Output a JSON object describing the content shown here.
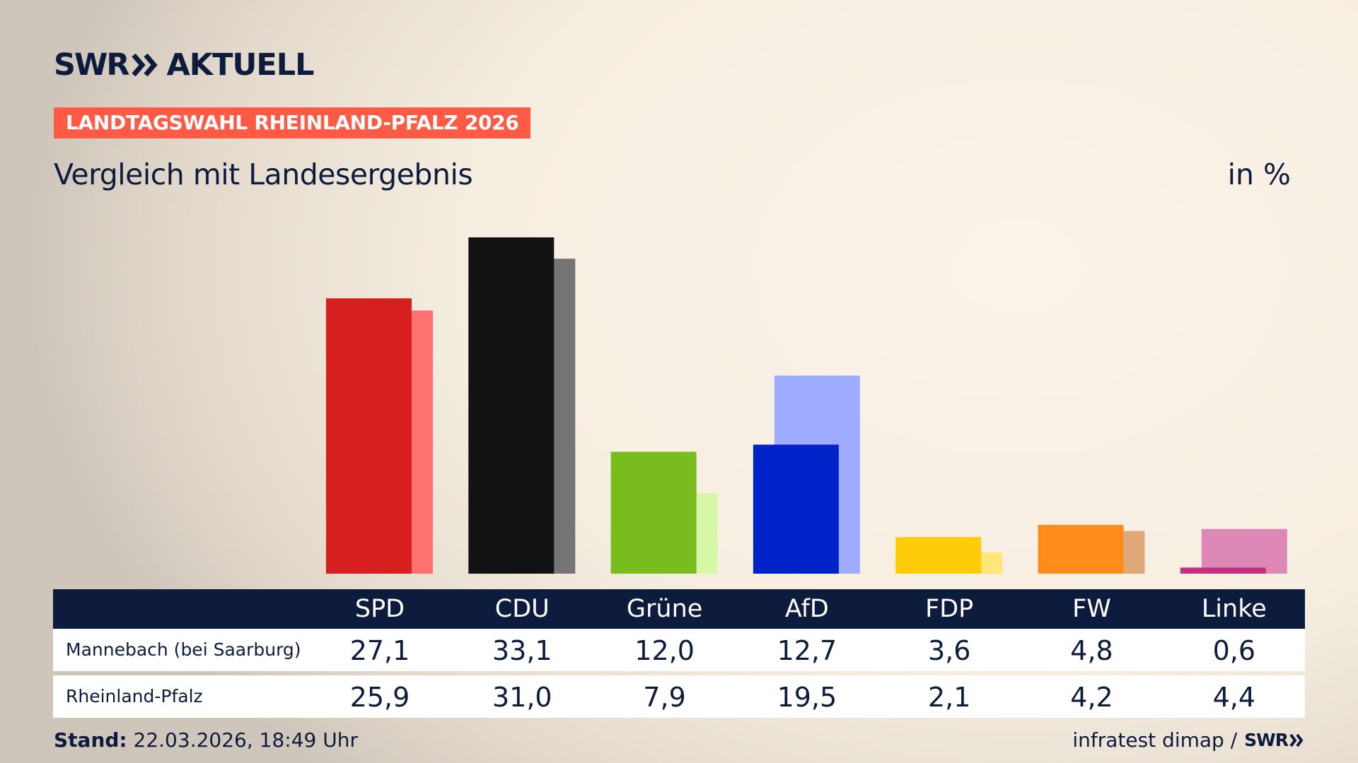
{
  "brand": {
    "logo_left": "SWR",
    "logo_right": "AKTUELL",
    "footer_logo": "SWR"
  },
  "badge": "LANDTAGSWAHL RHEINLAND-PFALZ 2026",
  "subtitle": "Vergleich mit Landesergebnis",
  "unit": "in %",
  "chart_data": {
    "type": "bar",
    "categories": [
      "SPD",
      "CDU",
      "Grüne",
      "AfD",
      "FDP",
      "FW",
      "Linke"
    ],
    "series": [
      {
        "name": "Mannebach (bei Saarburg)",
        "values": [
          27.1,
          33.1,
          12.0,
          12.7,
          3.6,
          4.8,
          0.6
        ],
        "colors": [
          "#d71f1f",
          "#121212",
          "#78bc1e",
          "#0022c9",
          "#ffcc0a",
          "#ff8c1a",
          "#c3307f"
        ]
      },
      {
        "name": "Rheinland-Pfalz",
        "values": [
          25.9,
          31.0,
          7.9,
          19.5,
          2.1,
          4.2,
          4.4
        ],
        "colors": [
          "#ff7070",
          "#757575",
          "#d7f6a8",
          "#9eacff",
          "#ffe57a",
          "#dea878",
          "#de88b8"
        ]
      }
    ],
    "display_values": {
      "Mannebach (bei Saarburg)": [
        "27,1",
        "33,1",
        "12,0",
        "12,7",
        "3,6",
        "4,8",
        "0,6"
      ],
      "Rheinland-Pfalz": [
        "25,9",
        "31,0",
        "7,9",
        "19,5",
        "2,1",
        "4,2",
        "4,4"
      ]
    },
    "ylim": [
      0,
      33.1
    ]
  },
  "footer": {
    "stand_label": "Stand:",
    "stand_value": "22.03.2026, 18:49 Uhr",
    "source": "infratest dimap /"
  }
}
